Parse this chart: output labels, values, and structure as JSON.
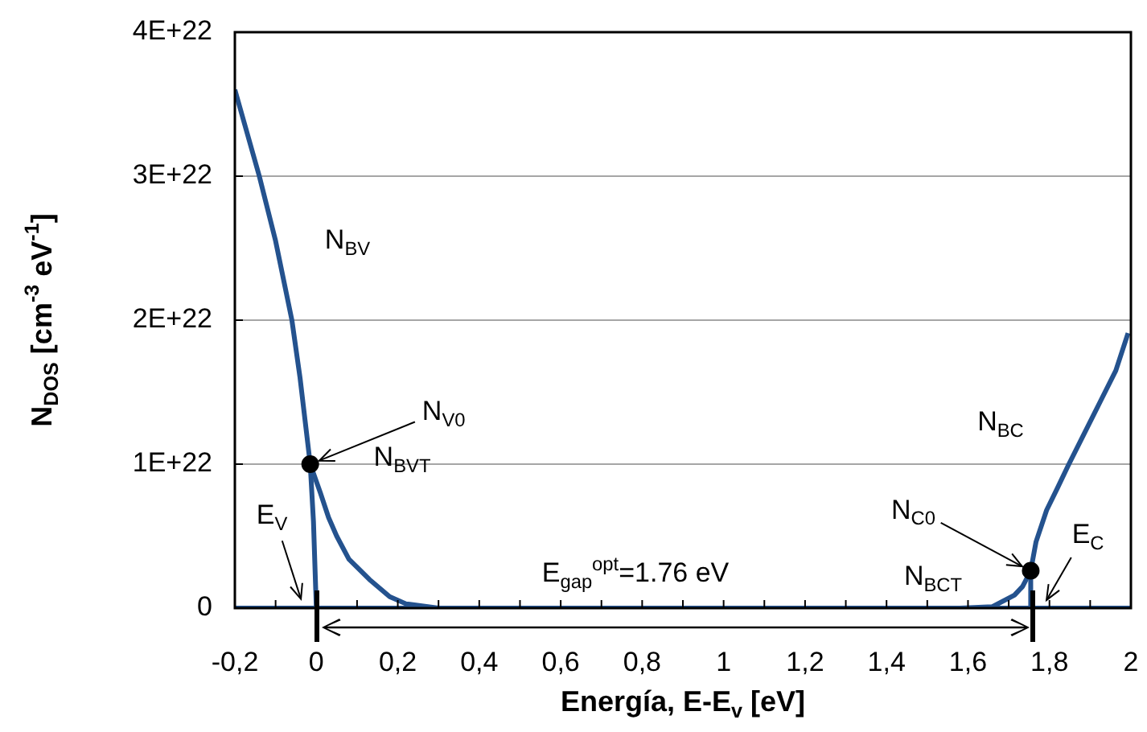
{
  "chart_data": {
    "type": "line",
    "xlabel": "Energía, E-E$_{v}$ [eV]",
    "ylabel": "N$_{DOS}$ [cm$^{-3}$ eV$^{-1}$]",
    "xlim": [
      -0.2,
      2
    ],
    "xticks": [
      {
        "value": -0.2,
        "label": "-0,2"
      },
      {
        "value": -0.1,
        "label": null
      },
      {
        "value": 0,
        "label": "0"
      },
      {
        "value": 0.1,
        "label": null
      },
      {
        "value": 0.2,
        "label": "0,2"
      },
      {
        "value": 0.3,
        "label": null
      },
      {
        "value": 0.4,
        "label": "0,4"
      },
      {
        "value": 0.5,
        "label": null
      },
      {
        "value": 0.6,
        "label": "0,6"
      },
      {
        "value": 0.7,
        "label": null
      },
      {
        "value": 0.8,
        "label": "0,8"
      },
      {
        "value": 0.9,
        "label": null
      },
      {
        "value": 1,
        "label": "1"
      },
      {
        "value": 1.1,
        "label": null
      },
      {
        "value": 1.2,
        "label": "1,2"
      },
      {
        "value": 1.3,
        "label": null
      },
      {
        "value": 1.4,
        "label": "1,4"
      },
      {
        "value": 1.5,
        "label": null
      },
      {
        "value": 1.6,
        "label": "1,6"
      },
      {
        "value": 1.7,
        "label": null
      },
      {
        "value": 1.8,
        "label": "1,8"
      },
      {
        "value": 1.9,
        "label": null
      },
      {
        "value": 2,
        "label": "2"
      }
    ],
    "ylim": [
      0,
      4e+22
    ],
    "yticks": [
      0,
      {
        "value": 1e+22,
        "label": "1E+22"
      },
      {
        "value": 2e+22,
        "label": "2E+22"
      },
      {
        "value": 3e+22,
        "label": "3E+22"
      },
      {
        "value": 4e+22,
        "label": "4E+22"
      }
    ],
    "grid": "y",
    "legend": false,
    "marker": "none",
    "line_style": "solid",
    "series": [
      {
        "color": "#24528e",
        "x": [
          -0.2,
          -0.17,
          -0.14,
          -0.1,
          -0.06,
          -0.04,
          -0.015,
          -0.007,
          0
        ],
        "values": [
          3.6e+22,
          3.3e+22,
          3e+22,
          2.55e+22,
          2e+22,
          1.6e+22,
          1e+22,
          6e+21,
          0
        ]
      },
      {
        "color": "#24528e",
        "x": [
          -0.015,
          0.01,
          0.03,
          0.05,
          0.08,
          0.13,
          0.18,
          0.22,
          0.3
        ],
        "values": [
          1e+22,
          8e+21,
          6.3e+21,
          5e+21,
          3.4e+21,
          2e+21,
          8e+20,
          3e+20,
          0
        ]
      },
      {
        "color": "#24528e",
        "x": [
          -0.2,
          2
        ],
        "values": [
          0,
          0
        ]
      },
      {
        "color": "#24528e",
        "x": [
          1.5,
          1.58,
          1.66,
          1.714,
          1.734,
          1.754
        ],
        "values": [
          0,
          0,
          1e+20,
          9e+20,
          1.5e+21,
          2.6e+21
        ]
      },
      {
        "color": "#24528e",
        "x": [
          1.752,
          1.754,
          1.767,
          1.793,
          1.819,
          1.846,
          1.885,
          1.924,
          1.963,
          1.993
        ],
        "values": [
          0,
          2.6e+21,
          4.6e+21,
          6.8e+21,
          8.3e+21,
          9.9e+21,
          1.21e+22,
          1.43e+22,
          1.65e+22,
          1.91e+22
        ]
      },
      {
        "type": "scatter",
        "marker": "circle",
        "color": "#000000",
        "x": [
          -0.015,
          1.754
        ],
        "values": [
          1e+22,
          2.6e+21
        ]
      }
    ],
    "annotations": [
      "N$_{BV}$",
      {
        "text": "N$_{V0}$",
        "x": -0.015,
        "y": 1e+22
      },
      {
        "text": "E$_{V}$",
        "x": -0.03,
        "y": 0
      },
      "N$_{BVT}$",
      "E$_{gap}$$^{opt}$=1.76 eV",
      "N$_{BCT}$",
      {
        "text": "N$_{C0}$",
        "x": 1.754,
        "y": 2.6e+21
      },
      {
        "text": "E$_{C}$",
        "x": 1.78,
        "y": 0
      },
      "N$_{BC}$"
    ]
  }
}
